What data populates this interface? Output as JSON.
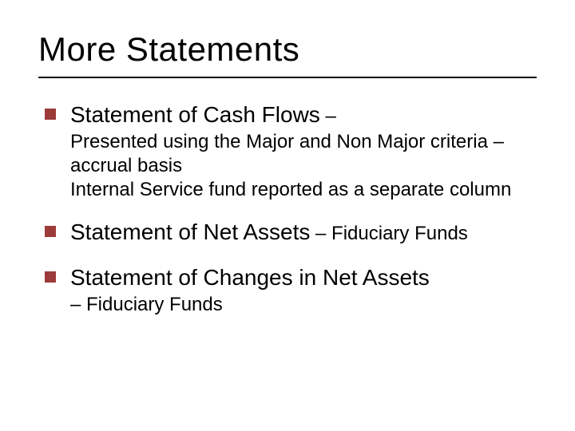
{
  "colors": {
    "bullet_color": "#9d3a3a",
    "rule_color": "#000000",
    "text_color": "#000000",
    "background_color": "#ffffff"
  },
  "typography": {
    "title_fontsize": 42,
    "lead_fontsize": 28,
    "sub_fontsize": 24,
    "font_family": "Verdana"
  },
  "slide": {
    "title": "More Statements",
    "bullets": [
      {
        "lead": "Statement of Cash Flows",
        "sub_inline": " – ",
        "continuation": "Presented using the Major and Non Major criteria – accrual basis\nInternal Service fund reported as a separate column"
      },
      {
        "lead": "Statement of Net Assets",
        "sub_inline": " – Fiduciary Funds",
        "continuation": ""
      },
      {
        "lead": "Statement of Changes in Net Assets",
        "sub_inline": "",
        "continuation": "– Fiduciary Funds"
      }
    ]
  }
}
